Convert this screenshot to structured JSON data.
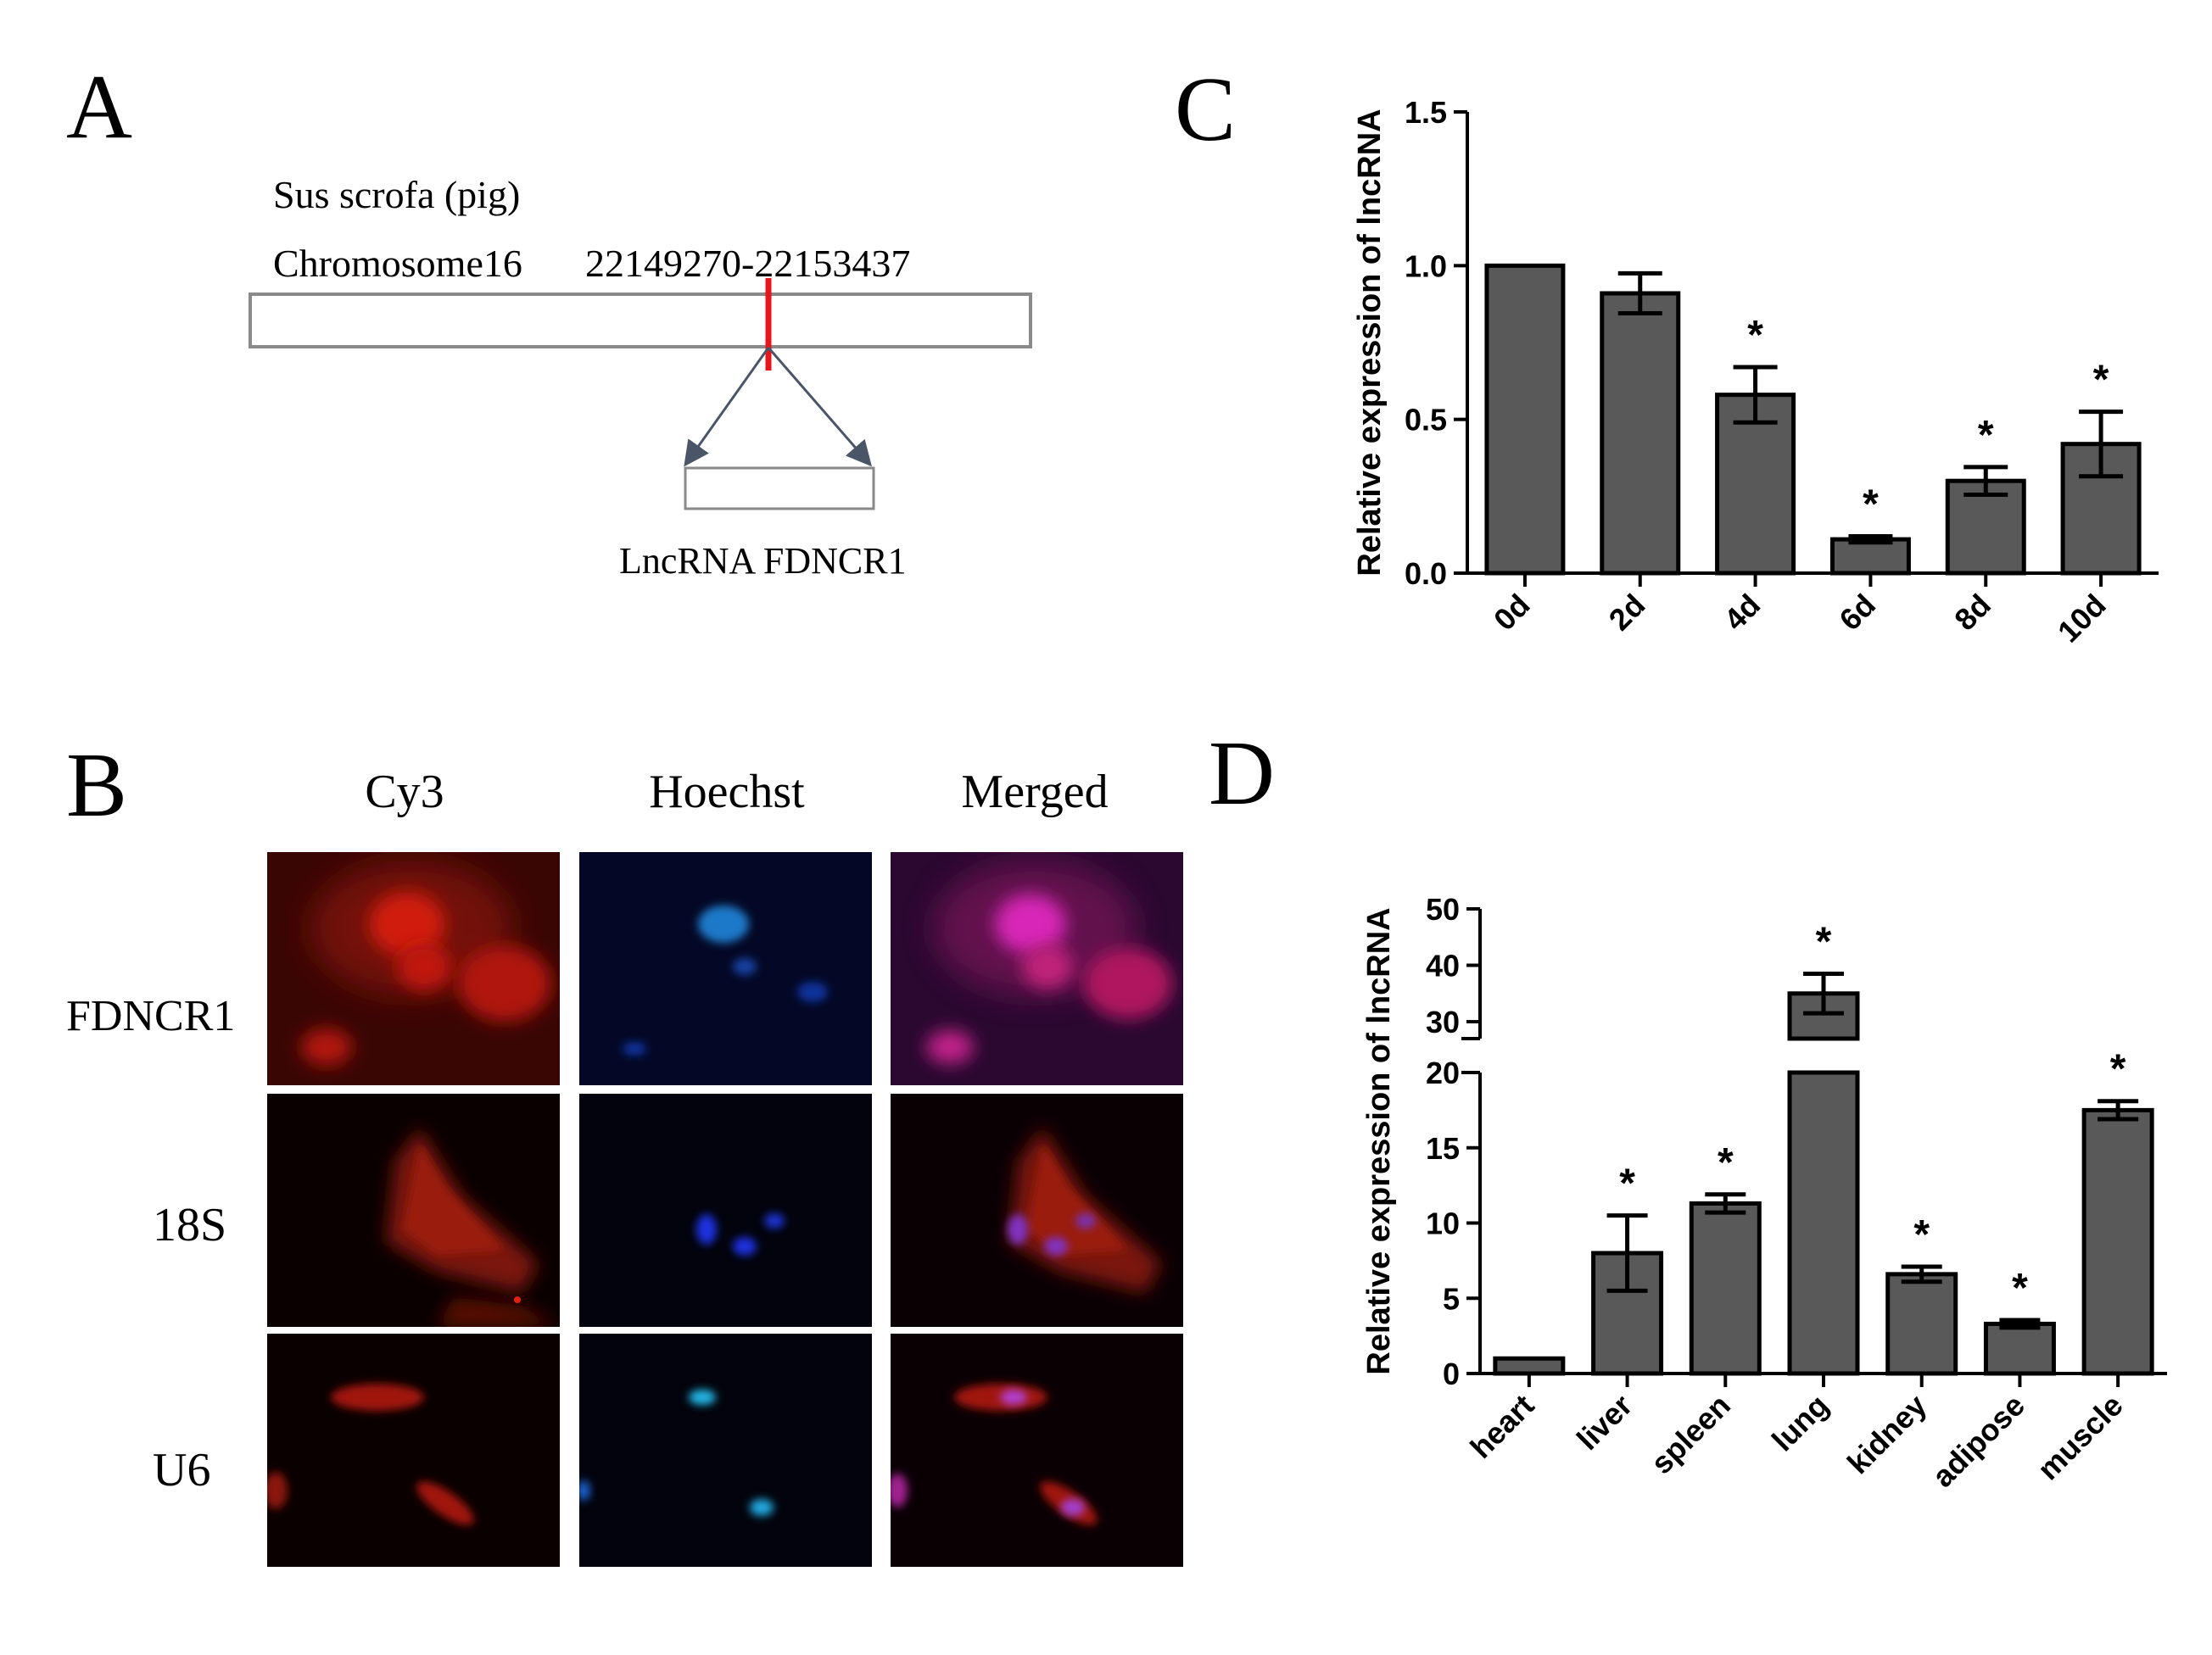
{
  "panels": {
    "a": {
      "letter": "A",
      "species": "Sus scrofa (pig)",
      "chromosome": "Chromosome16",
      "coordinates": "22149270-22153437",
      "lncrna_label": "LncRNA FDNCR1",
      "colors": {
        "marker": "#e8141c",
        "arrow": "#4a5668",
        "box": "#8a8a8a"
      }
    },
    "b": {
      "letter": "B",
      "columns": [
        "Cy3",
        "Hoechst",
        "Merged"
      ],
      "rows": [
        "FDNCR1",
        "18S",
        "U6"
      ]
    },
    "c": {
      "letter": "C"
    },
    "d": {
      "letter": "D"
    }
  },
  "chart_data": [
    {
      "panel": "C",
      "type": "bar",
      "categories": [
        "0d",
        "2d",
        "4d",
        "6d",
        "8d",
        "10d"
      ],
      "values": [
        1.0,
        0.91,
        0.58,
        0.11,
        0.3,
        0.42
      ],
      "errors": [
        0,
        0.065,
        0.09,
        0.01,
        0.045,
        0.105
      ],
      "significant": [
        false,
        false,
        true,
        true,
        true,
        true
      ],
      "significance_marker": "*",
      "ylabel": "Relative expression of lncRNA",
      "ylim": [
        0,
        1.5
      ],
      "yticks": [
        0.0,
        0.5,
        1.0,
        1.5
      ],
      "ytick_labels": [
        "0.0",
        "0.5",
        "1.0",
        "1.5"
      ],
      "bar_color": "#595959"
    },
    {
      "panel": "D",
      "type": "bar",
      "categories": [
        "heart",
        "liver",
        "spleen",
        "lung",
        "kidney",
        "adipose",
        "muscle"
      ],
      "values": [
        1.0,
        8.0,
        11.3,
        35.0,
        6.6,
        3.3,
        17.5
      ],
      "errors": [
        0,
        2.5,
        0.6,
        3.5,
        0.5,
        0.25,
        0.6
      ],
      "significant": [
        false,
        true,
        true,
        true,
        true,
        true,
        true
      ],
      "significance_marker": "*",
      "ylabel": "Relative expression of lncRNA",
      "axis_break": true,
      "lower_ylim": [
        0,
        20
      ],
      "upper_ylim": [
        27,
        50
      ],
      "yticks_lower": [
        0,
        5,
        10,
        15,
        20
      ],
      "yticks_upper": [
        30,
        40,
        50
      ],
      "bar_color": "#595959"
    }
  ]
}
